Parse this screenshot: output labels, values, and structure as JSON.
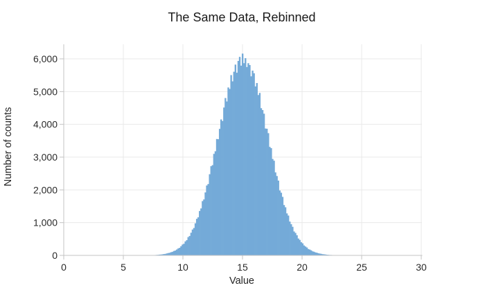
{
  "chart_data": {
    "type": "bar",
    "subtype": "histogram",
    "title": "The Same Data, Rebinned",
    "xlabel": "Value",
    "ylabel": "Number of counts",
    "xlim": [
      0,
      30
    ],
    "ylim": [
      0,
      6440
    ],
    "grid": true,
    "legend": "none",
    "x_ticks": [
      0,
      5,
      10,
      15,
      20,
      25,
      30
    ],
    "x_tick_labels": [
      "0",
      "5",
      "10",
      "15",
      "20",
      "25",
      "30"
    ],
    "y_ticks": [
      0,
      1000,
      2000,
      3000,
      4000,
      5000,
      6000
    ],
    "y_tick_labels": [
      "0",
      "1,000",
      "2,000",
      "3,000",
      "4,000",
      "5,000",
      "6,000"
    ],
    "bin_start": 7.5,
    "bin_width": 0.12,
    "counts": [
      10,
      12,
      15,
      18,
      24,
      27,
      33,
      41,
      46,
      59,
      71,
      79,
      97,
      110,
      135,
      149,
      179,
      212,
      232,
      281,
      331,
      355,
      428,
      466,
      559,
      593,
      692,
      789,
      837,
      980,
      1117,
      1164,
      1356,
      1434,
      1658,
      1708,
      1923,
      2134,
      2179,
      2478,
      2723,
      2755,
      3100,
      3179,
      3553,
      3547,
      3863,
      4150,
      4102,
      4514,
      4804,
      4699,
      5126,
      5081,
      5504,
      5313,
      5607,
      5824,
      5576,
      5936,
      6060,
      5792,
      6160,
      5868,
      6020,
      5750,
      5867,
      5810,
      5466,
      5641,
      5560,
      5158,
      5261,
      4895,
      4959,
      4494,
      4436,
      4325,
      3873,
      3867,
      3731,
      3312,
      3274,
      2945,
      2891,
      2533,
      2423,
      2284,
      1981,
      1914,
      1787,
      1537,
      1469,
      1282,
      1216,
      1033,
      954,
      873,
      730,
      686,
      616,
      515,
      473,
      403,
      368,
      304,
      271,
      241,
      194,
      177,
      154,
      124,
      111,
      91,
      81,
      65,
      56,
      48,
      38,
      33,
      28,
      21,
      18,
      14,
      13
    ],
    "colors": {
      "bar": "#74aad8",
      "axis": "#c3c3c3",
      "grid": "#e9e9e9",
      "text": "#2a2a2a",
      "background": "#ffffff"
    }
  }
}
